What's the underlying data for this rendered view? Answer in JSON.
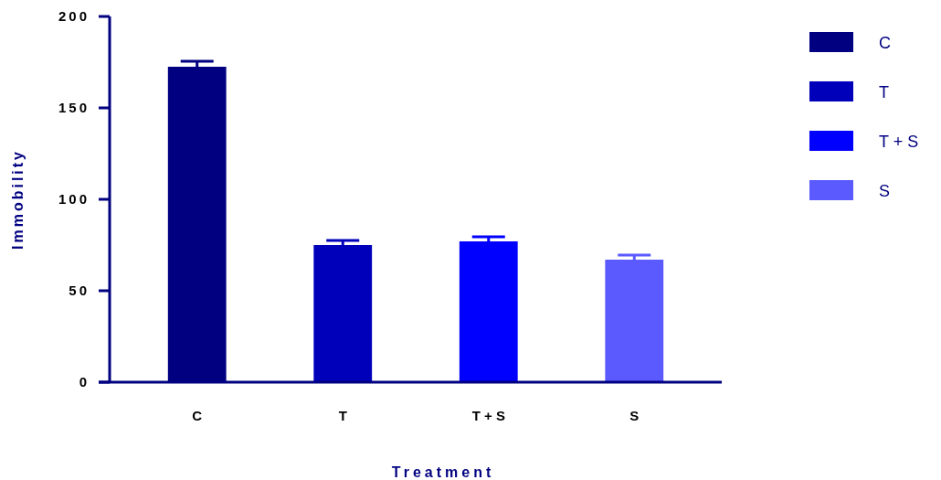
{
  "chart_data": {
    "type": "bar",
    "xlabel": "Treatment",
    "ylabel": "Immobility",
    "categories": [
      "C",
      "T",
      "T + S",
      "S"
    ],
    "series": [
      {
        "name": "C",
        "color": "#000080",
        "values": [
          172.5,
          null,
          null,
          null
        ],
        "errors": [
          3,
          null,
          null,
          null
        ]
      },
      {
        "name": "T",
        "color": "#0000bb",
        "values": [
          null,
          75,
          null,
          null
        ],
        "errors": [
          null,
          2.5,
          null,
          null
        ]
      },
      {
        "name": "T + S",
        "color": "#0000ff",
        "values": [
          null,
          null,
          77,
          null
        ],
        "errors": [
          null,
          null,
          2.5,
          null
        ]
      },
      {
        "name": "S",
        "color": "#5a5aff",
        "values": [
          null,
          null,
          null,
          67
        ],
        "errors": [
          null,
          null,
          null,
          2.5
        ]
      }
    ],
    "stacked": true,
    "ylim": [
      0,
      200
    ],
    "yticks": [
      0,
      50,
      100,
      150,
      200
    ],
    "grid": false,
    "legend": "right"
  }
}
